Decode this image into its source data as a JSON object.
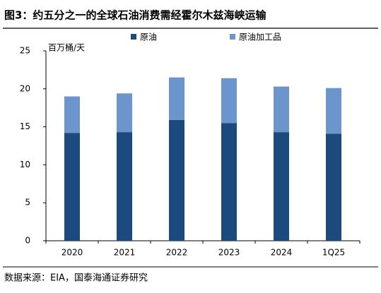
{
  "chart_data": {
    "type": "stacked_bar",
    "title": "图3：约五分之一的全球石油消费需经霍尔木兹海峡运输",
    "y_label": "百万桶/天",
    "source": "数据来源：EIA，国泰海通证券研究",
    "categories": [
      "2020",
      "2021",
      "2022",
      "2023",
      "2024",
      "1Q25"
    ],
    "series": [
      {
        "name": "原油",
        "color": "#1b4a7e",
        "values": [
          14.2,
          14.3,
          15.9,
          15.5,
          14.3,
          14.1
        ]
      },
      {
        "name": "原油加工品",
        "color": "#6b95cc",
        "values": [
          4.8,
          5.1,
          5.6,
          5.9,
          6.0,
          6.0
        ]
      }
    ],
    "ylim": [
      0,
      25
    ],
    "yticks": [
      0,
      5,
      10,
      15,
      20,
      25
    ]
  }
}
